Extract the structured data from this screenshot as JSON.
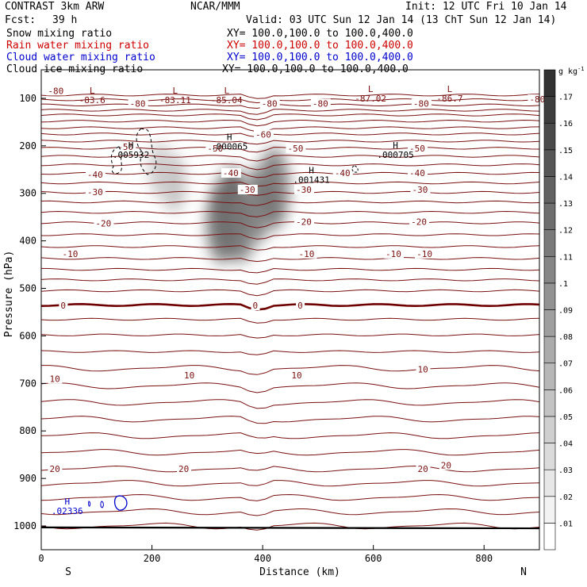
{
  "header": {
    "model": "CONTRAST  3km ARW",
    "center": "NCAR/MMM",
    "init": "Init: 12 UTC Fri 10 Jan 14",
    "fcst_label": "Fcst:",
    "fcst_value": "39 h",
    "valid": "Valid: 03 UTC Sun 12 Jan 14 (13 ChT Sun 12 Jan 14)"
  },
  "fields": [
    {
      "name": "Snow mixing ratio",
      "xy": "XY= 100.0,100.0 to 100.0,400.0",
      "color": "#000000"
    },
    {
      "name": "Rain water mixing ratio",
      "xy": "XY= 100.0,100.0 to 100.0,400.0",
      "color": "#cc0000"
    },
    {
      "name": "Cloud water mixing ratio",
      "xy": "XY= 100.0,100.0 to 100.0,400.0",
      "color": "#0000cc"
    },
    {
      "name": "Cloud ice mixing ratio",
      "xy": "XY= 100.0,100.0 to 100.0,400.0",
      "color": "#000000"
    }
  ],
  "chart_data": {
    "type": "heatmap",
    "xlabel": "Distance (km)",
    "ylabel": "Pressure (hPa)",
    "xlim": [
      0,
      900
    ],
    "ylim": [
      1050,
      40
    ],
    "xticks": [
      0,
      200,
      400,
      600,
      800
    ],
    "yticks": [
      100,
      200,
      300,
      400,
      500,
      600,
      700,
      800,
      900,
      1000
    ],
    "end_labels": {
      "left": "S",
      "right": "N"
    },
    "colorbar": {
      "unit": "g kg",
      "unit_exp": "-1",
      "levels": [
        0.01,
        0.02,
        0.03,
        0.04,
        0.05,
        0.06,
        0.07,
        0.08,
        0.09,
        0.1,
        0.11,
        0.12,
        0.13,
        0.14,
        0.15,
        0.16,
        0.17
      ],
      "tick_labels": [
        ".01",
        ".02",
        ".03",
        ".04",
        ".05",
        ".06",
        ".07",
        ".08",
        ".09",
        ".1",
        ".11",
        ".12",
        ".13",
        ".14",
        ".15",
        ".16",
        ".17"
      ]
    },
    "temperature_contours": {
      "color": "#7a1010",
      "zero_color": "#6e0000",
      "pressures": [
        1000,
        970,
        940,
        910,
        880,
        845,
        810,
        775,
        740,
        705,
        668,
        633,
        598,
        565,
        535,
        505,
        482,
        460,
        437,
        412,
        387,
        362,
        340,
        318,
        298,
        278,
        258,
        240,
        222,
        205,
        190,
        175,
        162,
        148,
        135,
        125,
        114,
        103,
        93
      ],
      "zero_pressure": 535,
      "labels": [
        {
          "text": "20",
          "x": 15,
          "p": 880
        },
        {
          "text": "20",
          "x": 248,
          "p": 880
        },
        {
          "text": "20",
          "x": 680,
          "p": 880
        },
        {
          "text": "20",
          "x": 722,
          "p": 872
        },
        {
          "text": "10",
          "x": 15,
          "p": 690
        },
        {
          "text": "10",
          "x": 258,
          "p": 683
        },
        {
          "text": "10",
          "x": 452,
          "p": 683
        },
        {
          "text": "10",
          "x": 680,
          "p": 670
        },
        {
          "text": "0",
          "x": 35,
          "p": 536
        },
        {
          "text": "0",
          "x": 382,
          "p": 536
        },
        {
          "text": "0",
          "x": 463,
          "p": 536
        },
        {
          "text": "-10",
          "x": 38,
          "p": 427
        },
        {
          "text": "-10",
          "x": 465,
          "p": 427
        },
        {
          "text": "-10",
          "x": 622,
          "p": 427
        },
        {
          "text": "-10",
          "x": 678,
          "p": 427
        },
        {
          "text": "-20",
          "x": 98,
          "p": 363
        },
        {
          "text": "-20",
          "x": 460,
          "p": 360
        },
        {
          "text": "-20",
          "x": 668,
          "p": 360
        },
        {
          "text": "-30",
          "x": 83,
          "p": 297
        },
        {
          "text": "-30",
          "x": 358,
          "p": 292
        },
        {
          "text": "-30",
          "x": 460,
          "p": 292
        },
        {
          "text": "-30",
          "x": 670,
          "p": 292
        },
        {
          "text": "-40",
          "x": 83,
          "p": 260
        },
        {
          "text": "-40",
          "x": 328,
          "p": 257
        },
        {
          "text": "-40",
          "x": 530,
          "p": 257
        },
        {
          "text": "-40",
          "x": 665,
          "p": 257
        },
        {
          "text": "-50",
          "x": 138,
          "p": 202
        },
        {
          "text": "-50",
          "x": 300,
          "p": 205
        },
        {
          "text": "-50",
          "x": 445,
          "p": 205
        },
        {
          "text": "-50",
          "x": 665,
          "p": 205
        },
        {
          "text": "-60",
          "x": 387,
          "p": 176
        },
        {
          "text": "-80",
          "x": 12,
          "p": 84
        },
        {
          "text": "-80",
          "x": 160,
          "p": 111
        },
        {
          "text": "-80",
          "x": 398,
          "p": 111
        },
        {
          "text": "-80",
          "x": 490,
          "p": 111
        },
        {
          "text": "-80",
          "x": 672,
          "p": 111
        },
        {
          "text": "-80",
          "x": 882,
          "p": 102
        }
      ]
    },
    "extrema": [
      {
        "kind": "L",
        "value": "-83.6",
        "x": 92,
        "p": 90,
        "color": "#7a1010"
      },
      {
        "kind": "L",
        "value": "-83.11",
        "x": 242,
        "p": 90,
        "color": "#7a1010"
      },
      {
        "kind": "L",
        "value": "-85.04",
        "x": 335,
        "p": 90,
        "color": "#7a1010"
      },
      {
        "kind": "L",
        "value": "-87.02",
        "x": 595,
        "p": 87,
        "color": "#7a1010"
      },
      {
        "kind": "L",
        "value": "-86.7",
        "x": 738,
        "p": 87,
        "color": "#7a1010"
      },
      {
        "kind": "H",
        "value": ".005932",
        "x": 162,
        "p": 205,
        "color": "#000000"
      },
      {
        "kind": "H",
        "value": ".000065",
        "x": 340,
        "p": 188,
        "color": "#000000"
      },
      {
        "kind": "H",
        "value": ".001431",
        "x": 488,
        "p": 258,
        "color": "#000000"
      },
      {
        "kind": "H",
        "value": ".000705",
        "x": 640,
        "p": 205,
        "color": "#000000"
      },
      {
        "kind": "H",
        "value": ".02336",
        "x": 47,
        "p": 955,
        "color": "#0000cc"
      }
    ],
    "snow_cells": [
      {
        "x": 345,
        "p": 340,
        "value": 0.16
      },
      {
        "x": 325,
        "p": 365,
        "value": 0.12
      },
      {
        "x": 362,
        "p": 370,
        "value": 0.1
      },
      {
        "x": 390,
        "p": 325,
        "value": 0.11
      },
      {
        "x": 420,
        "p": 290,
        "value": 0.13
      },
      {
        "x": 240,
        "p": 280,
        "value": 0.05
      },
      {
        "x": 215,
        "p": 250,
        "value": 0.04
      }
    ]
  }
}
